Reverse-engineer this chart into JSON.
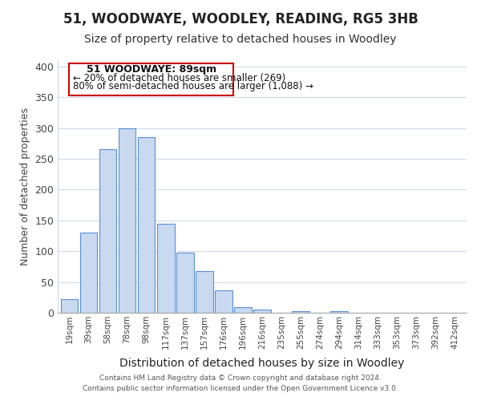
{
  "title": "51, WOODWAYE, WOODLEY, READING, RG5 3HB",
  "subtitle": "Size of property relative to detached houses in Woodley",
  "xlabel": "Distribution of detached houses by size in Woodley",
  "ylabel": "Number of detached properties",
  "bar_labels": [
    "19sqm",
    "39sqm",
    "58sqm",
    "78sqm",
    "98sqm",
    "117sqm",
    "137sqm",
    "157sqm",
    "176sqm",
    "196sqm",
    "216sqm",
    "235sqm",
    "255sqm",
    "274sqm",
    "294sqm",
    "314sqm",
    "333sqm",
    "353sqm",
    "373sqm",
    "392sqm",
    "412sqm"
  ],
  "bar_values": [
    22,
    130,
    265,
    300,
    285,
    145,
    98,
    68,
    37,
    9,
    5,
    0,
    2,
    0,
    2,
    0,
    0,
    0,
    0,
    0,
    0
  ],
  "bar_color": "#c8d9f0",
  "bar_edge_color": "#5a8fd4",
  "annotation_title": "51 WOODWAYE: 89sqm",
  "annotation_line1": "← 20% of detached houses are smaller (269)",
  "annotation_line2": "80% of semi-detached houses are larger (1,088) →",
  "annotation_box_color": "#ffffff",
  "annotation_box_edge": "#cc0000",
  "ylim": [
    0,
    410
  ],
  "yticks": [
    0,
    50,
    100,
    150,
    200,
    250,
    300,
    350,
    400
  ],
  "footnote1": "Contains HM Land Registry data © Crown copyright and database right 2024.",
  "footnote2": "Contains public sector information licensed under the Open Government Licence v3.0.",
  "bg_color": "#ffffff",
  "grid_color": "#d0d8e8",
  "title_fontsize": 12,
  "subtitle_fontsize": 10
}
